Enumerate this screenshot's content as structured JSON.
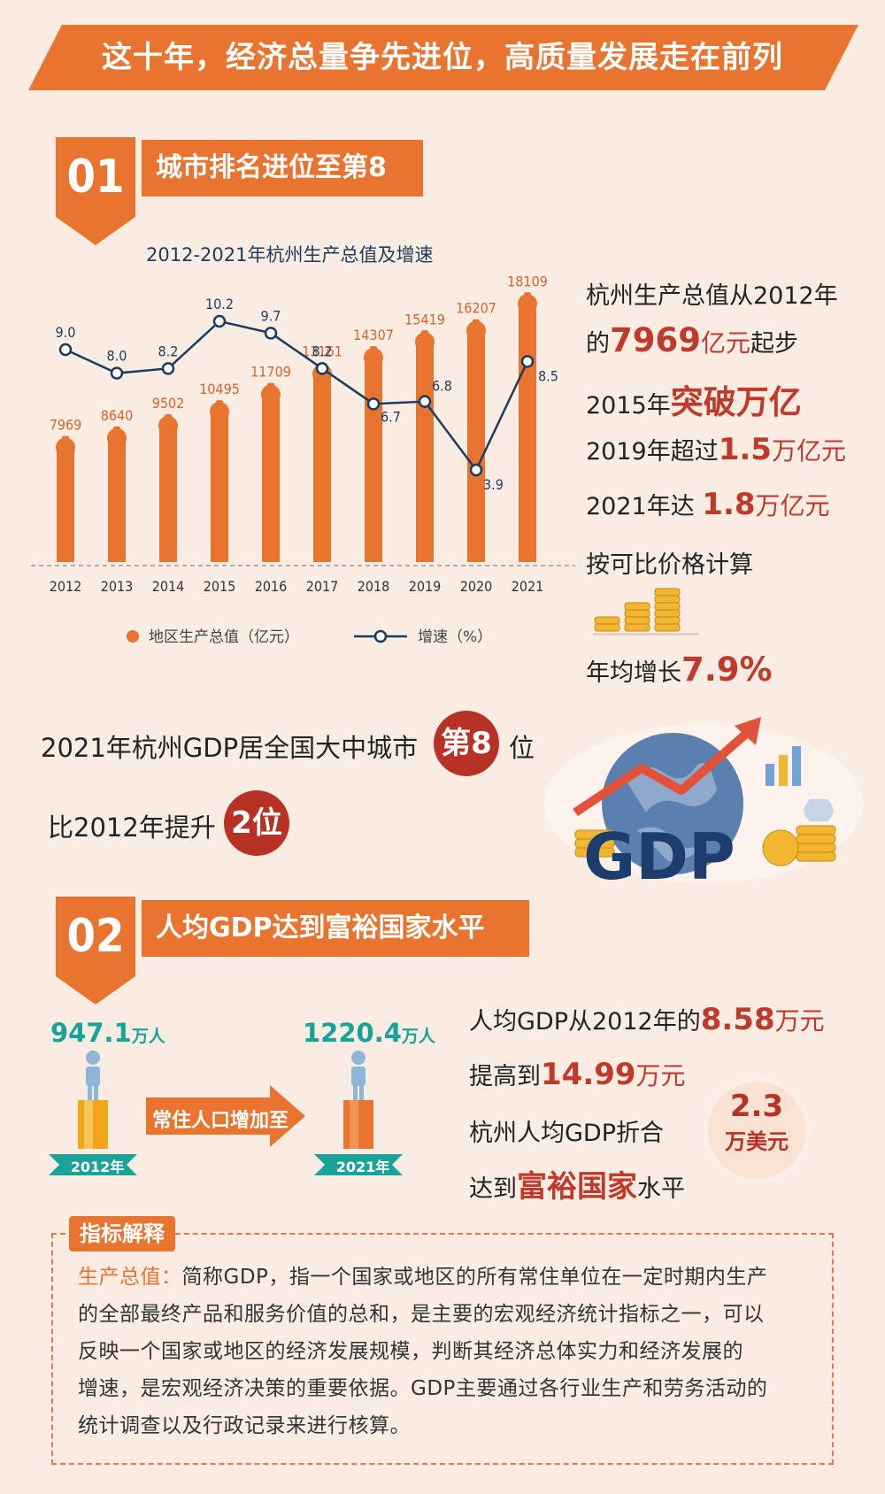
{
  "header": {
    "title": "这十年，经济总量争先进位，高质量发展走在前列"
  },
  "section1": {
    "number": "01",
    "title": "城市排名进位至第8"
  },
  "chart_data": {
    "type": "bar+line",
    "title": "2012-2021年杭州生产总值及增速",
    "categories": [
      "2012",
      "2013",
      "2014",
      "2015",
      "2016",
      "2017",
      "2018",
      "2019",
      "2020",
      "2021"
    ],
    "series": [
      {
        "name": "地区生产总值（亿元）",
        "type": "bar",
        "values": [
          7969,
          8640,
          9502,
          10495,
          11709,
          13161,
          14307,
          15419,
          16207,
          18109
        ],
        "color": "#e9742f"
      },
      {
        "name": "增速（%）",
        "type": "line",
        "values": [
          9.0,
          8.0,
          8.2,
          10.2,
          9.7,
          8.2,
          6.7,
          6.8,
          3.9,
          8.5
        ],
        "color": "#1e3a5f"
      }
    ],
    "bar_labels": [
      "7969",
      "8640",
      "9502",
      "10495",
      "11709",
      "13161",
      "14307",
      "15419",
      "16207",
      "18109"
    ],
    "line_labels": [
      "9.0",
      "8.0",
      "8.2",
      "10.2",
      "9.7",
      "8.2",
      "6.7",
      "6.8",
      "3.9",
      "8.5"
    ],
    "bar_ylim": [
      0,
      20000
    ],
    "line_ylim": [
      0,
      12
    ],
    "legend": {
      "bar": "地区生产总值（亿元）",
      "line": "增速（%）"
    }
  },
  "summary": {
    "l1": "杭州生产总值从2012年",
    "l2_pre": "的",
    "l2_val": "7969",
    "l2_unit": "亿元",
    "l2_post": "起步",
    "l3_pre": "2015年",
    "l3_hl": "突破万亿",
    "l4_pre": "2019年超过",
    "l4_val": "1.5",
    "l4_unit": "万亿元",
    "l5_pre": "2021年达 ",
    "l5_val": "1.8",
    "l5_unit": "万亿元",
    "l6": "按可比价格计算",
    "l7_pre": "年均增长",
    "l7_val": "7.9%"
  },
  "rank": {
    "l1": "2021年杭州GDP居全国大中城市",
    "badge1": "第8",
    "l1_post": "位",
    "l2": "比2012年提升",
    "badge2": "2位"
  },
  "gdp_illustration": {
    "label": "GDP"
  },
  "section2": {
    "number": "02",
    "title": "人均GDP达到富裕国家水平"
  },
  "population": {
    "v2012": "947.1",
    "v2021": "1220.4",
    "unit": "万人",
    "y2012": "2012年",
    "y2021": "2021年",
    "arrow_label": "常住人口增加至"
  },
  "per_capita": {
    "l1_pre": "人均GDP从2012年的",
    "l1_val": "8.58",
    "l1_unit": "万元",
    "l2_pre": "提高到",
    "l2_val": "14.99",
    "l2_unit": "万元",
    "l3": "杭州人均GDP折合",
    "usd_val": "2.3",
    "usd_unit": "万美元",
    "l4_pre": "达到",
    "l4_hl": "富裕国家",
    "l4_post": "水平"
  },
  "note": {
    "tab": "指标解释",
    "key": "生产总值：",
    "line1": "简称GDP，指一个国家或地区的所有常住单位在一定时期内生产",
    "line2": "的全部最终产品和服务价值的总和，是主要的宏观经济统计指标之一，可以",
    "line3": "反映一个国家或地区的经济发展规模，判断其经济总体实力和经济发展的",
    "line4": "增速，是宏观经济决策的重要依据。GDP主要通过各行业生产和劳务活动的",
    "line5": "统计调查以及行政记录来进行核算。"
  }
}
